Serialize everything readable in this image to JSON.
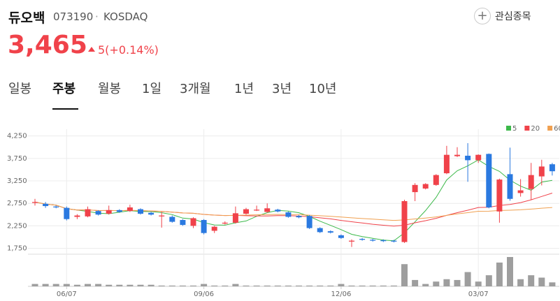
{
  "header": {
    "name": "듀오백",
    "code": "073190",
    "separator": "·",
    "market": "KOSDAQ",
    "watch": "관심종목",
    "price": "3,465",
    "change": "5(+0.14%)"
  },
  "tabs": {
    "items": [
      "일봉",
      "주봉",
      "월봉",
      "1일",
      "3개월",
      "1년",
      "3년",
      "10년"
    ],
    "active": 1
  },
  "chart_data": {
    "type": "candlestick",
    "categories": [
      null,
      null,
      null,
      "06/07",
      null,
      null,
      null,
      null,
      null,
      null,
      null,
      null,
      null,
      null,
      null,
      null,
      "09/06",
      null,
      null,
      null,
      null,
      null,
      null,
      null,
      null,
      null,
      null,
      null,
      null,
      "12/06",
      null,
      null,
      null,
      null,
      null,
      null,
      null,
      null,
      null,
      null,
      null,
      null,
      "03/07",
      null,
      null,
      null,
      null,
      null,
      null,
      null
    ],
    "open": [
      2760,
      2740,
      2680,
      2650,
      2450,
      2460,
      2580,
      2520,
      2600,
      2580,
      2620,
      2540,
      2460,
      2450,
      2380,
      2250,
      2380,
      2140,
      2300,
      2320,
      2520,
      2590,
      2560,
      2610,
      2550,
      2470,
      2470,
      2200,
      2130,
      2040,
      1900,
      1960,
      1940,
      1930,
      1920,
      1890,
      3000,
      3080,
      3160,
      3420,
      3800,
      3810,
      3710,
      3850,
      2570,
      3400,
      2980,
      3070,
      3350,
      3620
    ],
    "high": [
      2850,
      2780,
      2700,
      2680,
      2510,
      2680,
      2600,
      2700,
      2620,
      2720,
      2640,
      2560,
      2560,
      2480,
      2400,
      2440,
      2400,
      2250,
      2350,
      2680,
      2650,
      2700,
      2750,
      2630,
      2570,
      2490,
      2490,
      2220,
      2150,
      2060,
      1950,
      1980,
      1960,
      1950,
      1940,
      2830,
      3200,
      3200,
      3400,
      4030,
      4000,
      4090,
      3840,
      3860,
      3300,
      3990,
      3290,
      3650,
      3720,
      3650
    ],
    "low": [
      2700,
      2650,
      2640,
      2370,
      2400,
      2440,
      2480,
      2500,
      2540,
      2560,
      2500,
      2480,
      2210,
      2320,
      2250,
      2200,
      2060,
      2090,
      2280,
      2300,
      2500,
      2580,
      2540,
      2550,
      2430,
      2420,
      2180,
      2090,
      2080,
      1960,
      1780,
      1920,
      1900,
      1890,
      1880,
      1870,
      2800,
      3060,
      3140,
      3400,
      3780,
      3230,
      3650,
      2640,
      2320,
      2810,
      2900,
      2830,
      3150,
      3370
    ],
    "close": [
      2780,
      2690,
      2660,
      2400,
      2480,
      2620,
      2500,
      2600,
      2560,
      2660,
      2520,
      2500,
      2480,
      2340,
      2270,
      2420,
      2090,
      2230,
      2320,
      2530,
      2620,
      2610,
      2640,
      2570,
      2450,
      2440,
      2200,
      2110,
      2100,
      1980,
      1920,
      1940,
      1920,
      1910,
      1900,
      2800,
      3160,
      3180,
      3380,
      3830,
      3830,
      3710,
      3830,
      2660,
      3280,
      2850,
      3040,
      3380,
      3570,
      3465
    ],
    "volume": [
      3,
      3,
      3,
      3,
      2,
      3,
      3,
      2,
      2,
      2,
      2,
      2,
      1,
      1,
      1,
      1,
      3,
      1,
      1,
      3,
      1,
      1,
      1,
      1,
      1,
      1,
      1,
      1,
      1,
      3,
      1,
      1,
      1,
      1,
      1,
      28,
      8,
      3,
      6,
      9,
      8,
      18,
      6,
      14,
      30,
      37,
      9,
      14,
      11,
      5
    ],
    "up_color": "#f0424a",
    "down_color": "#2a79e0",
    "volume_color": "#9e9e9e",
    "ylim": [
      1650,
      4400
    ],
    "yticks": [
      {
        "value": 1750,
        "label": "1,750"
      },
      {
        "value": 2250,
        "label": "2,250"
      },
      {
        "value": 2750,
        "label": "2,750"
      },
      {
        "value": 3250,
        "label": "3,250"
      },
      {
        "value": 3750,
        "label": "3,750"
      },
      {
        "value": 4250,
        "label": "4,250"
      }
    ],
    "grid": true,
    "moving_averages": [
      {
        "name": "5",
        "color": "#3cb94a"
      },
      {
        "name": "20",
        "color": "#f0424a"
      },
      {
        "name": "60",
        "color": "#f0a050"
      }
    ],
    "legend": "top-right"
  }
}
